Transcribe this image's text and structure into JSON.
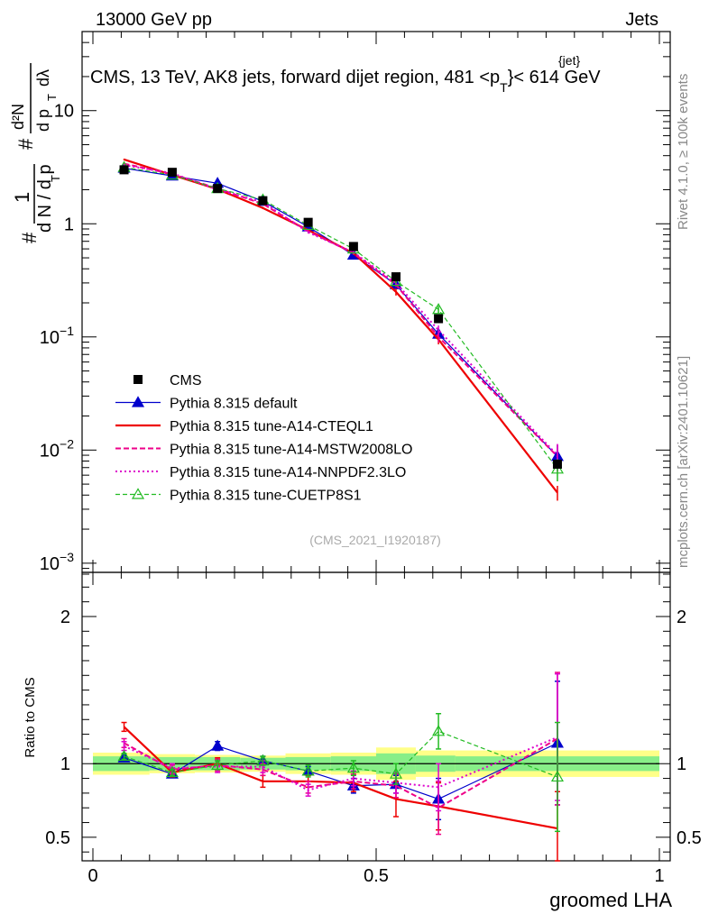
{
  "header": {
    "left": "13000 GeV pp",
    "right": "Jets",
    "ref": "(CMS_2021_I1920187)",
    "side_top": "Rivet 4.1.0, ≥ 100k events",
    "side_bottom": "mcplots.cern.ch [arXiv:2401.10621]"
  },
  "chart_data": {
    "type": "line",
    "title": {
      "main": "CMS, 13 TeV, AK8 jets, forward dijet region, 481 <p",
      "sup": "{jet}",
      "sub": "T",
      "end": "}< 614 GeV"
    },
    "xlabel": "groomed LHA",
    "ylabel": "1/N dN/dp_T dλ",
    "ylabel_parts": {
      "hash": "#",
      "one": "1",
      "dn": "d N / d p",
      "t": "T",
      "d2n": "d²N",
      "dpt": "d p",
      "dl": "dλ"
    },
    "ratio_ylabel": "Ratio to CMS",
    "xlim": [
      0,
      1
    ],
    "ylim": [
      0.0008,
      50
    ],
    "ratio_ylim": [
      0.34,
      2.3
    ],
    "x_ticks": [
      {
        "v": 0,
        "label": "0"
      },
      {
        "v": 0.5,
        "label": "0.5"
      },
      {
        "v": 1,
        "label": "1"
      }
    ],
    "y_ticks": [
      {
        "v": 0.001,
        "base": "10",
        "exp": "−3"
      },
      {
        "v": 0.01,
        "base": "10",
        "exp": "−2"
      },
      {
        "v": 0.1,
        "base": "10",
        "exp": "−1"
      },
      {
        "v": 1,
        "base": "1",
        "exp": ""
      },
      {
        "v": 10,
        "base": "10",
        "exp": ""
      }
    ],
    "ratio_ticks": [
      {
        "v": 0.5,
        "label": "0.5"
      },
      {
        "v": 1,
        "label": "1"
      },
      {
        "v": 2,
        "label": "2"
      }
    ],
    "x": [
      0.055,
      0.14,
      0.22,
      0.3,
      0.38,
      0.46,
      0.535,
      0.61,
      0.82
    ],
    "bins": [
      [
        0.0,
        0.1
      ],
      [
        0.1,
        0.18
      ],
      [
        0.18,
        0.26
      ],
      [
        0.26,
        0.34
      ],
      [
        0.34,
        0.42
      ],
      [
        0.42,
        0.5
      ],
      [
        0.5,
        0.57
      ],
      [
        0.57,
        0.64
      ],
      [
        0.64,
        1.0
      ]
    ],
    "band_inner": [
      0.05,
      0.045,
      0.045,
      0.04,
      0.045,
      0.05,
      0.07,
      0.055,
      0.05
    ],
    "band_outer": [
      0.075,
      0.065,
      0.06,
      0.055,
      0.07,
      0.075,
      0.11,
      0.09,
      0.09
    ],
    "data": {
      "name": "CMS",
      "values": [
        3.0,
        2.85,
        2.05,
        1.6,
        1.03,
        0.63,
        0.34,
        0.145,
        0.0075
      ]
    },
    "series": [
      {
        "name": "Pythia 8.315 default",
        "color": "#0000cc",
        "dash": "",
        "width": 1.2,
        "marker": "tri-filled",
        "values": [
          3.1,
          2.65,
          2.28,
          1.58,
          0.94,
          0.53,
          0.29,
          0.106,
          0.0088
        ],
        "ratio": [
          1.04,
          0.93,
          1.12,
          1.02,
          0.95,
          0.85,
          0.86,
          0.76,
          1.14
        ],
        "ratio_err": [
          0.02,
          0.02,
          0.03,
          0.03,
          0.03,
          0.05,
          0.06,
          0.14,
          0.42
        ]
      },
      {
        "name": "Pythia 8.315 tune-A14-CTEQL1",
        "color": "#ee0000",
        "dash": "",
        "width": 2.2,
        "marker": "none",
        "values": [
          3.7,
          2.7,
          2.02,
          1.38,
          0.88,
          0.55,
          0.25,
          0.095,
          0.0042
        ],
        "ratio": [
          1.25,
          0.94,
          1.0,
          0.88,
          0.88,
          0.87,
          0.76,
          0.71,
          0.56
        ],
        "ratio_err": [
          0.03,
          0.03,
          0.04,
          0.04,
          0.04,
          0.06,
          0.12,
          0.16,
          0.25
        ]
      },
      {
        "name": "Pythia 8.315 tune-A14-MSTW2008LO",
        "color": "#ee0088",
        "dash": "6,3",
        "width": 2.0,
        "marker": "none",
        "values": [
          3.4,
          2.75,
          2.05,
          1.5,
          0.86,
          0.55,
          0.29,
          0.1,
          0.0088
        ],
        "ratio": [
          1.14,
          0.96,
          0.99,
          0.96,
          0.84,
          0.88,
          0.85,
          0.7,
          1.17
        ],
        "ratio_err": [
          0.03,
          0.03,
          0.04,
          0.04,
          0.04,
          0.05,
          0.08,
          0.18,
          0.45
        ]
      },
      {
        "name": "Pythia 8.315 tune-A14-NNPDF2.3LO",
        "color": "#dd00cc",
        "dash": "2,3",
        "width": 2.0,
        "marker": "none",
        "values": [
          3.3,
          2.8,
          2.0,
          1.55,
          0.84,
          0.56,
          0.3,
          0.115,
          0.009
        ],
        "ratio": [
          1.12,
          0.97,
          0.98,
          0.98,
          0.82,
          0.9,
          0.87,
          0.84,
          1.18
        ],
        "ratio_err": [
          0.03,
          0.03,
          0.04,
          0.04,
          0.04,
          0.05,
          0.07,
          0.16,
          0.43
        ]
      },
      {
        "name": "Pythia 8.315 tune-CUETP8S1",
        "color": "#22bb22",
        "dash": "5,3",
        "width": 1.2,
        "marker": "tri-open",
        "values": [
          3.15,
          2.7,
          2.05,
          1.63,
          0.97,
          0.6,
          0.31,
          0.175,
          0.0068
        ],
        "ratio": [
          1.05,
          0.94,
          0.99,
          1.02,
          0.95,
          0.97,
          0.93,
          1.22,
          0.91
        ],
        "ratio_err": [
          0.02,
          0.02,
          0.03,
          0.03,
          0.04,
          0.05,
          0.07,
          0.12,
          0.37
        ]
      }
    ],
    "legend_position": "center-left"
  }
}
